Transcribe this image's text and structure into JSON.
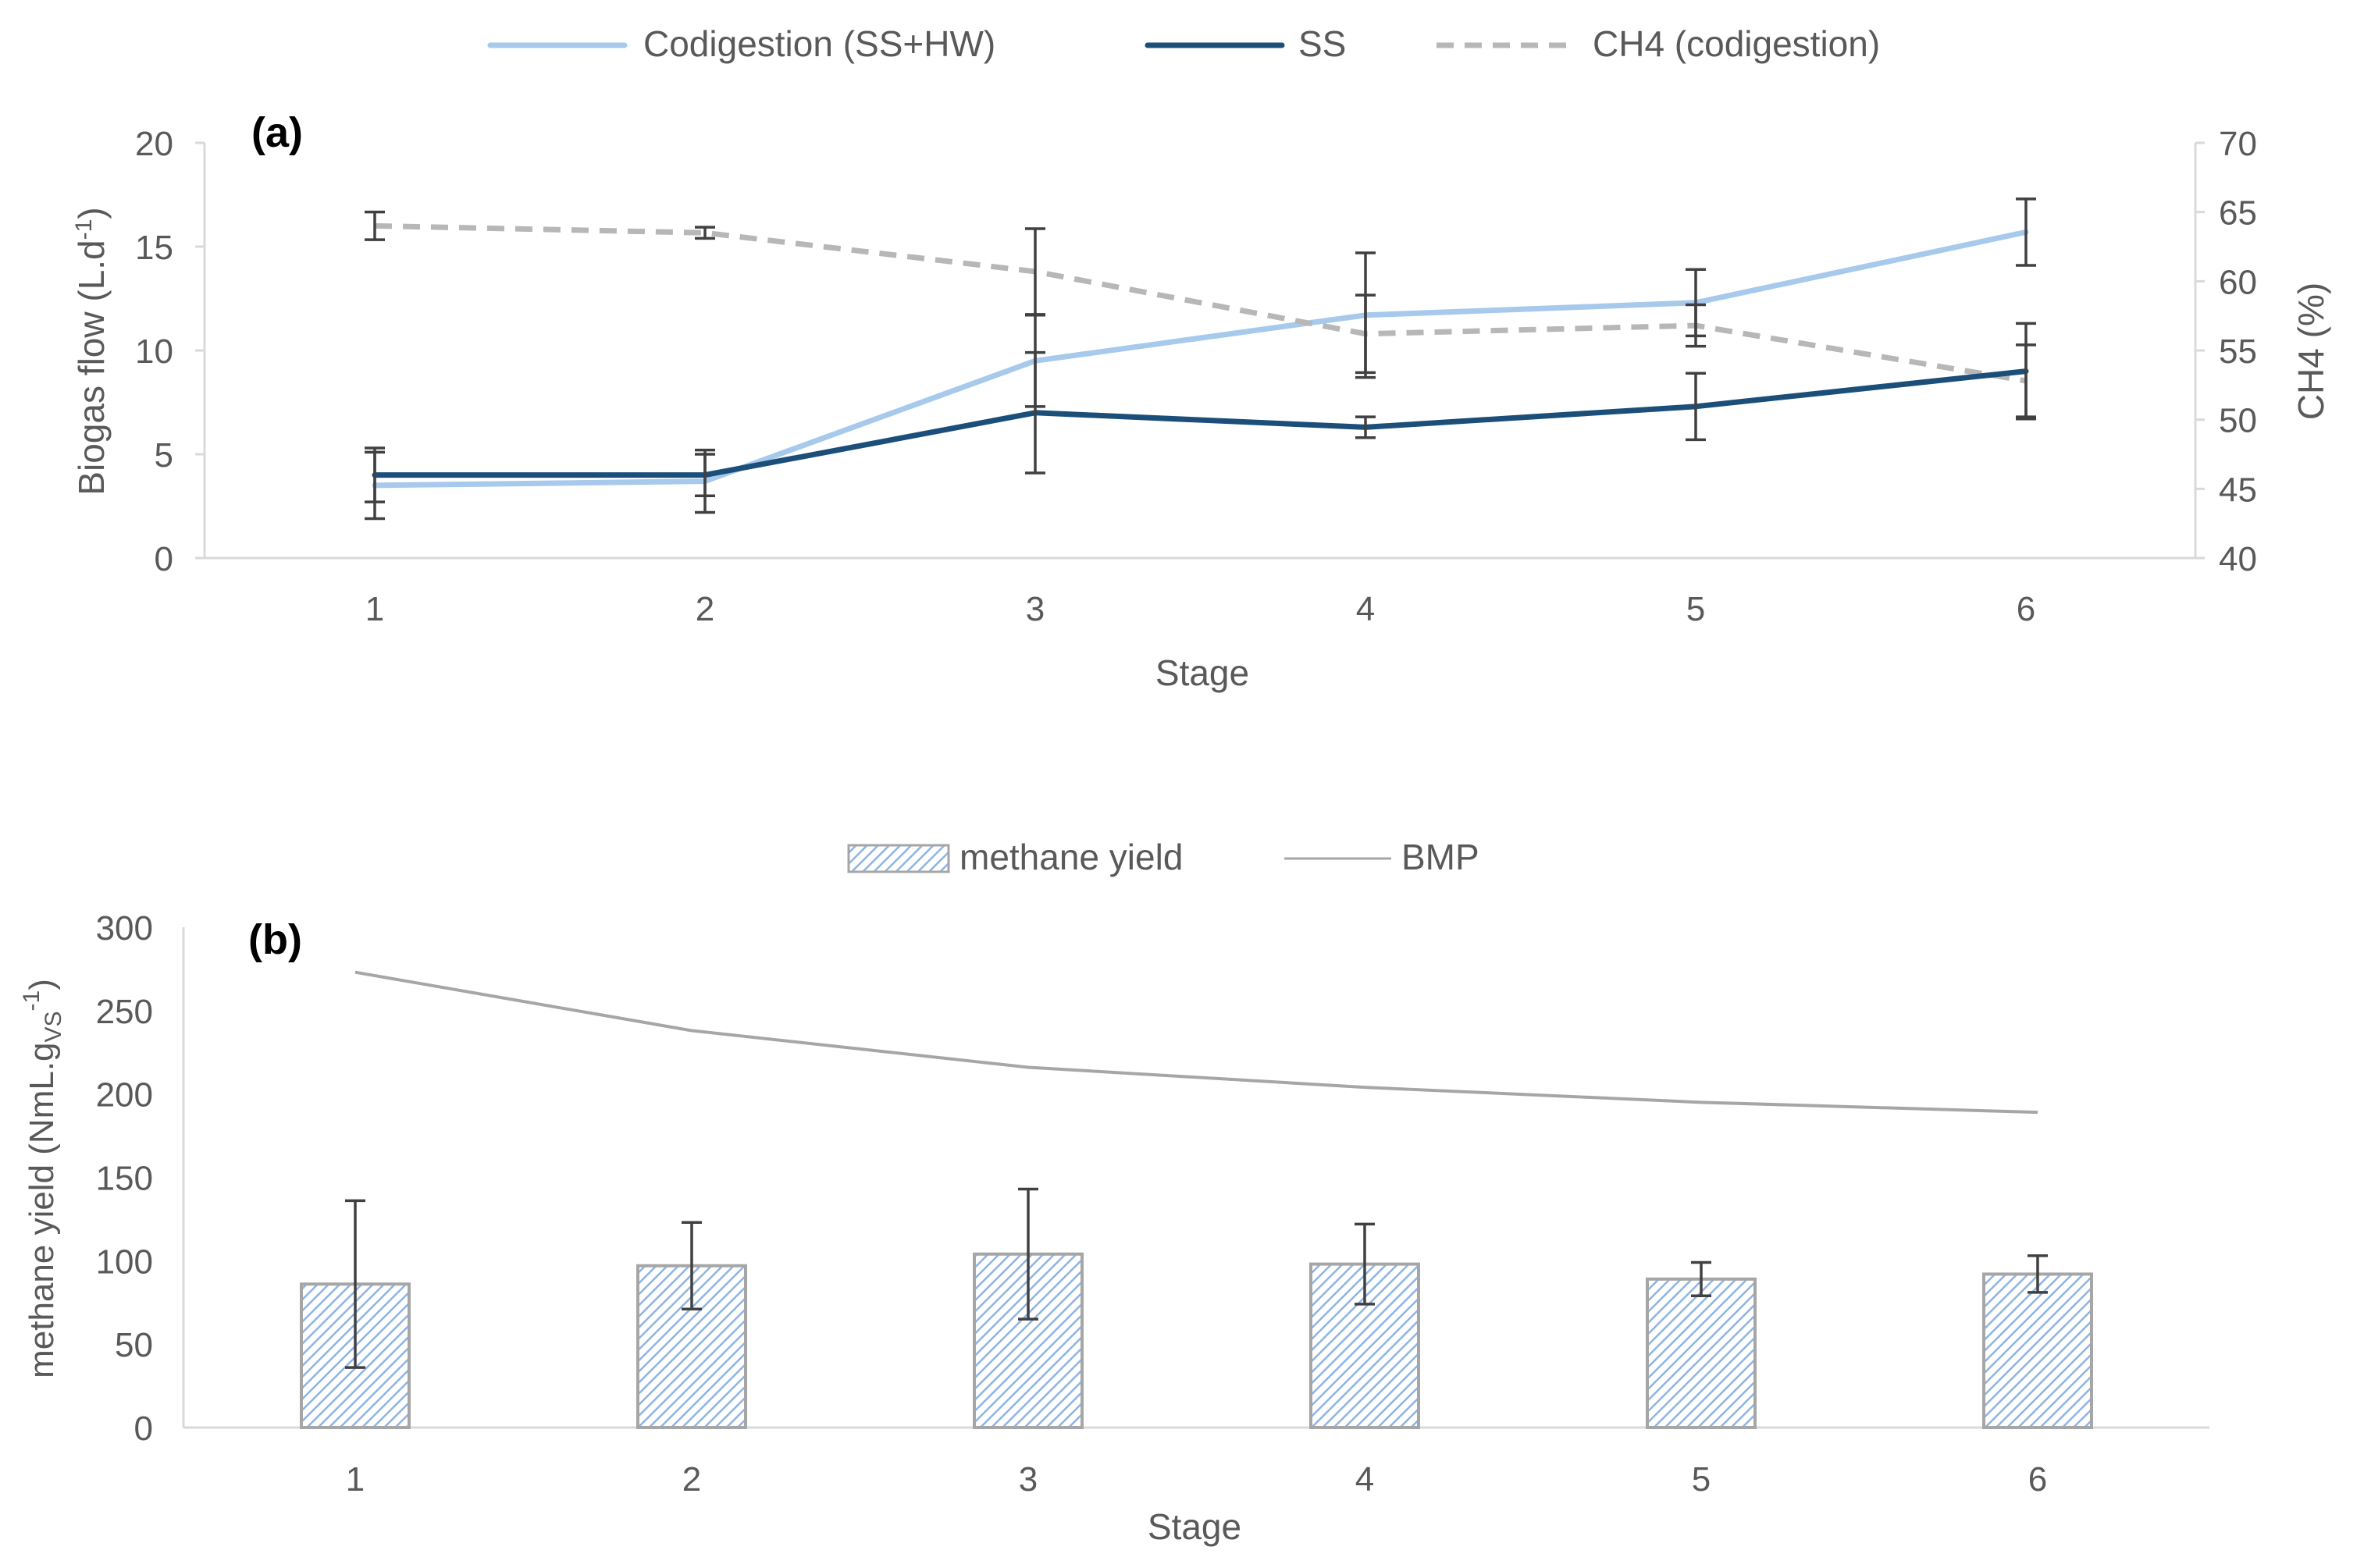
{
  "chart_data": [
    {
      "panel_label": "(a)",
      "type": "line",
      "categories": [
        "1",
        "2",
        "3",
        "4",
        "5",
        "6"
      ],
      "xlabel": "Stage",
      "ylabel_main": "Biogas flow (L.d",
      "ylabel_sup": "-1",
      "ylabel_close": ")",
      "y2label": "CH4  (%)",
      "ylim": [
        0,
        20
      ],
      "yticks": [
        "0",
        "5",
        "10",
        "15",
        "20"
      ],
      "y2lim": [
        40,
        70
      ],
      "y2ticks": [
        "40",
        "45",
        "50",
        "55",
        "60",
        "65",
        "70"
      ],
      "series": [
        {
          "name": "Codigestion (SS+HW)",
          "axis": "left",
          "style": "solid",
          "color": "#a6c9ec",
          "values": [
            3.5,
            3.7,
            9.5,
            11.7,
            12.3,
            15.7
          ],
          "err_low": [
            1.6,
            1.5,
            2.2,
            3.0,
            1.6,
            1.6
          ],
          "err_high": [
            1.6,
            1.5,
            2.2,
            3.0,
            1.6,
            1.6
          ]
        },
        {
          "name": "SS",
          "axis": "left",
          "style": "solid",
          "color": "#1b4f7a",
          "values": [
            4.0,
            4.0,
            7.0,
            6.3,
            7.3,
            9.0
          ],
          "err_low": [
            1.3,
            1.0,
            2.9,
            0.5,
            1.6,
            2.3
          ],
          "err_high": [
            1.3,
            1.0,
            2.9,
            0.5,
            1.6,
            2.3
          ]
        },
        {
          "name": "CH4 (codigestion)",
          "axis": "right",
          "style": "dashed",
          "color": "#b7b7b7",
          "values": [
            64.0,
            63.5,
            60.7,
            56.2,
            56.8,
            52.8
          ],
          "err_low": [
            1.0,
            0.4,
            3.1,
            2.8,
            1.5,
            2.6
          ],
          "err_high": [
            1.0,
            0.4,
            3.1,
            2.8,
            1.5,
            2.6
          ]
        }
      ]
    },
    {
      "panel_label": "(b)",
      "type": "bar",
      "categories": [
        "1",
        "2",
        "3",
        "4",
        "5",
        "6"
      ],
      "xlabel": "Stage",
      "ylabel_main": "methane  yield (NmL.g",
      "ylabel_sub": "VS",
      "ylabel_sup": "-1",
      "ylabel_close": ")",
      "ylim": [
        0,
        300
      ],
      "yticks": [
        "0",
        "50",
        "100",
        "150",
        "200",
        "250",
        "300"
      ],
      "series": [
        {
          "name": "methane yield",
          "type": "bar",
          "pattern": "diagonal-hatch",
          "color": "#8eb4e3",
          "values": [
            86,
            97,
            104,
            98,
            89,
            92
          ],
          "err_low": [
            50,
            26,
            39,
            24,
            10,
            11
          ],
          "err_high": [
            50,
            26,
            39,
            24,
            10,
            11
          ]
        },
        {
          "name": "BMP",
          "type": "line",
          "color": "#a6a6a6",
          "values": [
            273,
            238,
            216,
            204,
            195,
            189
          ]
        }
      ]
    }
  ]
}
